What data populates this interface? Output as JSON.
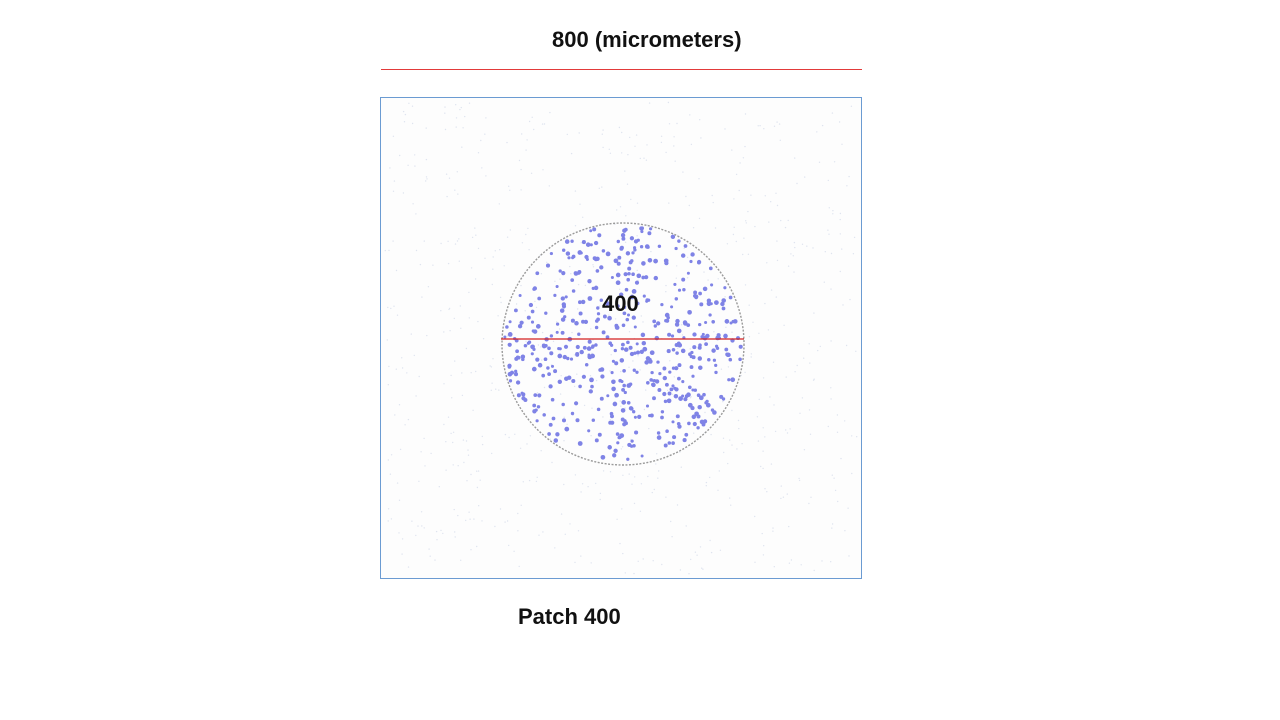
{
  "top_scale": {
    "label": "800 (micrometers)",
    "line_color": "#e23a3a"
  },
  "patch": {
    "circle_label": "400",
    "caption": "Patch 400",
    "border_color": "#6b9bd2",
    "dot_color": "#7f83e6",
    "circle_color": "#9a9a9a",
    "diameter_line_color": "#d42020"
  }
}
